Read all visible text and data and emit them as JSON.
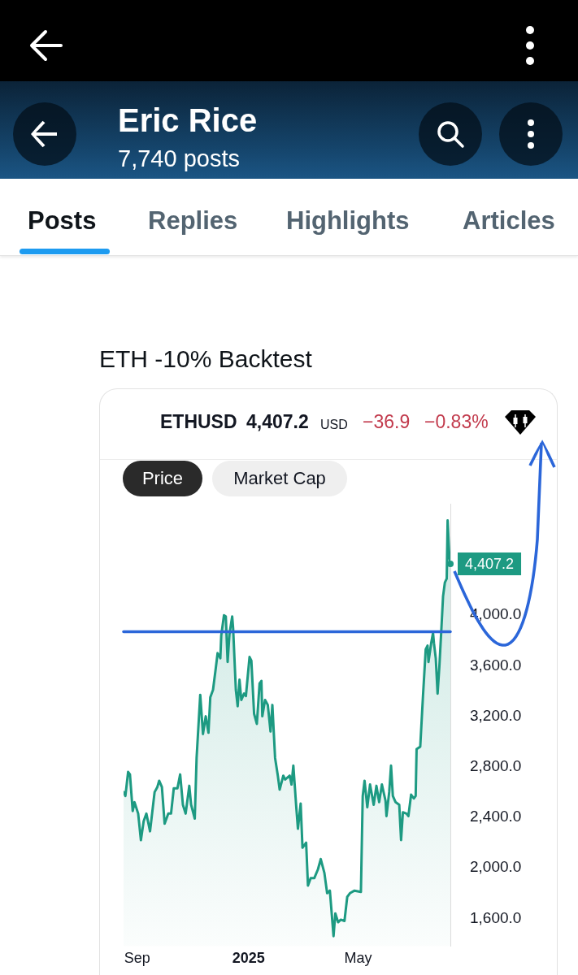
{
  "chart_data": {
    "type": "area",
    "title": "ETH -10% Backtest",
    "annotations": [
      "Eric Rice",
      "7,740 posts",
      "Posts",
      "Replies",
      "Highlights",
      "Articles",
      "ETHUSD",
      "4,407.2",
      "USD",
      "−36.9",
      "−0.83%",
      "Price",
      "Market Cap",
      {
        "text": "4,407.2",
        "x": "2025-08-10",
        "y": 4407.2
      }
    ],
    "x": [
      "2024-08-17",
      "2024-08-19",
      "2024-08-22",
      "2024-08-24",
      "2024-08-27",
      "2024-08-29",
      "2024-09-02",
      "2024-09-05",
      "2024-09-08",
      "2024-09-11",
      "2024-09-15",
      "2024-09-20",
      "2024-09-23",
      "2024-09-25",
      "2024-09-28",
      "2024-10-01",
      "2024-10-05",
      "2024-10-08",
      "2024-10-11",
      "2024-10-15",
      "2024-10-18",
      "2024-10-21",
      "2024-10-24",
      "2024-10-28",
      "2024-10-30",
      "2024-11-03",
      "2024-11-05",
      "2024-11-09",
      "2024-11-12",
      "2024-11-15",
      "2024-11-18",
      "2024-11-20",
      "2024-11-23",
      "2024-11-26",
      "2024-11-28",
      "2024-12-01",
      "2024-12-02",
      "2024-12-05",
      "2024-12-07",
      "2024-12-09",
      "2024-12-11",
      "2024-12-14",
      "2024-12-15",
      "2024-12-18",
      "2024-12-20",
      "2024-12-22",
      "2024-12-24",
      "2024-12-27",
      "2024-12-29",
      "2025-01-02",
      "2025-01-04",
      "2025-01-07",
      "2025-01-10",
      "2025-01-13",
      "2025-01-15",
      "2025-01-16",
      "2025-01-19",
      "2025-01-22",
      "2025-01-25",
      "2025-01-27",
      "2025-01-30",
      "2025-02-02",
      "2025-02-04",
      "2025-02-08",
      "2025-02-10",
      "2025-02-15",
      "2025-02-17",
      "2025-02-19",
      "2025-02-22",
      "2025-02-24",
      "2025-02-27",
      "2025-03-01",
      "2025-03-05",
      "2025-03-07",
      "2025-03-10",
      "2025-03-14",
      "2025-03-18",
      "2025-03-21",
      "2025-03-25",
      "2025-03-28",
      "2025-03-31",
      "2025-04-04",
      "2025-04-06",
      "2025-04-09",
      "2025-04-12",
      "2025-04-16",
      "2025-04-19",
      "2025-04-22",
      "2025-04-27",
      "2025-05-04",
      "2025-05-06",
      "2025-05-08",
      "2025-05-11",
      "2025-05-14",
      "2025-05-18",
      "2025-05-21",
      "2025-05-24",
      "2025-05-27",
      "2025-05-31",
      "2025-06-01",
      "2025-06-04",
      "2025-06-06",
      "2025-06-08",
      "2025-06-11",
      "2025-06-15",
      "2025-06-17",
      "2025-06-19",
      "2025-06-23",
      "2025-06-25",
      "2025-06-28",
      "2025-07-01",
      "2025-07-03",
      "2025-07-04",
      "2025-07-08",
      "2025-07-11",
      "2025-07-14",
      "2025-07-16",
      "2025-07-17",
      "2025-07-20",
      "2025-07-22",
      "2025-07-23",
      "2025-07-25",
      "2025-07-27",
      "2025-07-29",
      "2025-07-31",
      "2025-08-02",
      "2025-08-04",
      "2025-08-06",
      "2025-08-07",
      "2025-08-09",
      "2025-08-10"
    ],
    "series": [
      {
        "color": "#1d9a82",
        "values": [
          2600,
          2570,
          2760,
          2740,
          2450,
          2520,
          2430,
          2220,
          2370,
          2430,
          2290,
          2600,
          2640,
          2690,
          2640,
          2350,
          2430,
          2430,
          2630,
          2630,
          2740,
          2500,
          2430,
          2650,
          2500,
          2390,
          2870,
          3370,
          3060,
          3200,
          3070,
          3350,
          3410,
          3580,
          3700,
          3660,
          3840,
          4000,
          3990,
          3630,
          3850,
          3990,
          3900,
          3410,
          3280,
          3490,
          3330,
          3380,
          3360,
          3670,
          3640,
          3220,
          3140,
          3460,
          3480,
          3200,
          3330,
          3290,
          3080,
          3290,
          2870,
          2730,
          2620,
          2730,
          2700,
          2730,
          2660,
          2810,
          2500,
          2310,
          2510,
          2160,
          2200,
          1860,
          1920,
          1920,
          1990,
          2070,
          1960,
          1800,
          1820,
          1460,
          1640,
          1570,
          1590,
          1580,
          1770,
          1800,
          1820,
          1810,
          2570,
          2690,
          2480,
          2660,
          2500,
          2650,
          2520,
          2660,
          2530,
          2410,
          2600,
          2810,
          2570,
          2520,
          2500,
          2220,
          2440,
          2430,
          2410,
          2580,
          2550,
          2570,
          2940,
          2960,
          3360,
          3730,
          3760,
          3630,
          3780,
          3860,
          3780,
          3660,
          3380,
          3600,
          3870,
          4150,
          4260,
          4290,
          4750,
          4450,
          4407.2
        ]
      }
    ],
    "xlim": [
      "2024-08-17",
      "2025-08-10"
    ],
    "xticks": [
      {
        "value": "2024-09-01",
        "label": "Sep"
      },
      {
        "value": "2025-01-01",
        "label": "2025"
      },
      {
        "value": "2025-05-01",
        "label": "May"
      }
    ],
    "ylim": [
      1380,
      4880
    ],
    "yticks": [
      {
        "value": 1600,
        "label": "1,600.0"
      },
      {
        "value": 2000,
        "label": "2,000.0"
      },
      {
        "value": 2400,
        "label": "2,400.0"
      },
      {
        "value": 2800,
        "label": "2,800.0"
      },
      {
        "value": 3200,
        "label": "3,200.0"
      },
      {
        "value": 3600,
        "label": "3,600.0"
      },
      {
        "value": 4000,
        "label": "4,000.0"
      }
    ],
    "ref_lines": [
      {
        "axis": "y",
        "value": 3870,
        "color": "#2b66d9"
      }
    ]
  }
}
